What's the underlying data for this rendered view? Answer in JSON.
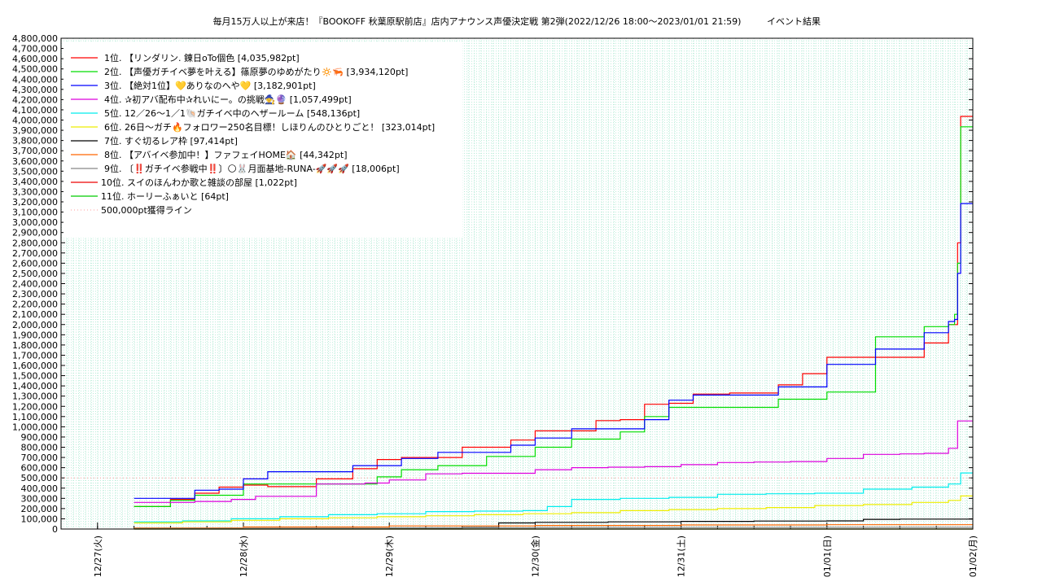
{
  "chart_data": {
    "type": "line",
    "title": "毎月15万人以上が来店！『BOOKOFF 秋葉原駅前店』店内アナウンス声優決定戦 第2弾(2022/12/26 18:00～2023/01/01 21:59)",
    "subtitle": "イベント結果",
    "xlabel": "",
    "ylabel": "",
    "ylim": [
      0,
      4800000
    ],
    "yticks": [
      "0",
      "100,000",
      "200,000",
      "300,000",
      "400,000",
      "500,000",
      "600,000",
      "700,000",
      "800,000",
      "900,000",
      "1,000,000",
      "1,100,000",
      "1,200,000",
      "1,300,000",
      "1,400,000",
      "1,500,000",
      "1,600,000",
      "1,700,000",
      "1,800,000",
      "1,900,000",
      "2,000,000",
      "2,100,000",
      "2,200,000",
      "2,300,000",
      "2,400,000",
      "2,500,000",
      "2,600,000",
      "2,700,000",
      "2,800,000",
      "2,900,000",
      "3,000,000",
      "3,100,000",
      "3,200,000",
      "3,300,000",
      "3,400,000",
      "3,500,000",
      "3,600,000",
      "3,700,000",
      "3,800,000",
      "3,900,000",
      "4,000,000",
      "4,100,000",
      "4,200,000",
      "4,300,000",
      "4,400,000",
      "4,500,000",
      "4,600,000",
      "4,700,000",
      "4,800,000"
    ],
    "xlim": [
      "2022-12-26T18:00",
      "2023-01-02T00:00"
    ],
    "xticks": [
      {
        "at": "2022-12-27T00:00",
        "label": "12/27(火)"
      },
      {
        "at": "2022-12-28T00:00",
        "label": "12/28(水)"
      },
      {
        "at": "2022-12-29T00:00",
        "label": "12/29(木)"
      },
      {
        "at": "2022-12-30T00:00",
        "label": "12/30(金)"
      },
      {
        "at": "2022-12-31T00:00",
        "label": "12/31(土)"
      },
      {
        "at": "2023-01-01T00:00",
        "label": "01/01(日)"
      },
      {
        "at": "2023-01-02T00:00",
        "label": "01/02(月)"
      }
    ],
    "grid": true,
    "legend_position": "top-left",
    "reference_line": {
      "label": "500,000pt獲得ライン",
      "value": 500000,
      "color": "#ff9999",
      "style": "dotted"
    },
    "series": [
      {
        "name": "1位. 【リンダリン. 錬日oTo個色 [4,035,982pt]",
        "color": "#ff0000",
        "x": [
          "2022-12-27T06:00",
          "2022-12-27T12:00",
          "2022-12-27T16:00",
          "2022-12-27T20:00",
          "2022-12-28T00:00",
          "2022-12-28T04:00",
          "2022-12-28T12:00",
          "2022-12-28T18:00",
          "2022-12-28T22:00",
          "2022-12-29T02:00",
          "2022-12-29T08:00",
          "2022-12-29T12:00",
          "2022-12-29T16:00",
          "2022-12-29T20:00",
          "2022-12-30T00:00",
          "2022-12-30T06:00",
          "2022-12-30T10:00",
          "2022-12-30T14:00",
          "2022-12-30T18:00",
          "2022-12-30T22:00",
          "2022-12-31T02:00",
          "2022-12-31T08:00",
          "2022-12-31T12:00",
          "2022-12-31T16:00",
          "2022-12-31T20:00",
          "2023-01-01T00:00",
          "2023-01-01T08:00",
          "2023-01-01T12:00",
          "2023-01-01T16:00",
          "2023-01-01T20:00",
          "2023-01-01T21:00",
          "2023-01-01T21:30",
          "2023-01-01T22:00",
          "2023-01-02T00:00"
        ],
        "y": [
          220000,
          290000,
          350000,
          410000,
          430000,
          415000,
          490000,
          590000,
          680000,
          700000,
          700000,
          800000,
          800000,
          870000,
          960000,
          960000,
          1060000,
          1070000,
          1220000,
          1230000,
          1320000,
          1330000,
          1330000,
          1410000,
          1520000,
          1680000,
          1680000,
          1680000,
          1820000,
          2000000,
          2000000,
          2800000,
          4035982,
          4035982
        ]
      },
      {
        "name": "2位. 【声優ガチイベ夢を叶える】篠原夢のゆめがたり🔅🦐 [3,934,120pt]",
        "color": "#00dd00",
        "x": [
          "2022-12-27T06:00",
          "2022-12-27T12:00",
          "2022-12-27T16:00",
          "2022-12-27T20:00",
          "2022-12-28T00:00",
          "2022-12-28T04:00",
          "2022-12-28T12:00",
          "2022-12-28T18:00",
          "2022-12-28T22:00",
          "2022-12-29T02:00",
          "2022-12-29T08:00",
          "2022-12-29T12:00",
          "2022-12-29T16:00",
          "2022-12-29T20:00",
          "2022-12-30T00:00",
          "2022-12-30T06:00",
          "2022-12-30T10:00",
          "2022-12-30T14:00",
          "2022-12-30T18:00",
          "2022-12-30T22:00",
          "2022-12-31T02:00",
          "2022-12-31T08:00",
          "2022-12-31T12:00",
          "2022-12-31T16:00",
          "2022-12-31T20:00",
          "2023-01-01T00:00",
          "2023-01-01T08:00",
          "2023-01-01T12:00",
          "2023-01-01T16:00",
          "2023-01-01T20:00",
          "2023-01-01T21:00",
          "2023-01-01T21:30",
          "2023-01-01T22:00",
          "2023-01-02T00:00"
        ],
        "y": [
          220000,
          280000,
          330000,
          330000,
          440000,
          440000,
          440000,
          440000,
          510000,
          580000,
          620000,
          620000,
          710000,
          710000,
          800000,
          880000,
          880000,
          950000,
          1100000,
          1190000,
          1190000,
          1190000,
          1190000,
          1270000,
          1270000,
          1340000,
          1880000,
          1880000,
          1980000,
          2000000,
          2100000,
          2600000,
          3934120,
          3934120
        ]
      },
      {
        "name": "3位. 【絶対1位】💛ありなのへや💛 [3,182,901pt]",
        "color": "#0000ff",
        "x": [
          "2022-12-27T06:00",
          "2022-12-27T12:00",
          "2022-12-27T16:00",
          "2022-12-27T20:00",
          "2022-12-28T00:00",
          "2022-12-28T04:00",
          "2022-12-28T12:00",
          "2022-12-28T18:00",
          "2022-12-28T22:00",
          "2022-12-29T02:00",
          "2022-12-29T08:00",
          "2022-12-29T12:00",
          "2022-12-29T16:00",
          "2022-12-29T20:00",
          "2022-12-30T00:00",
          "2022-12-30T06:00",
          "2022-12-30T10:00",
          "2022-12-30T14:00",
          "2022-12-30T18:00",
          "2022-12-30T22:00",
          "2022-12-31T02:00",
          "2022-12-31T08:00",
          "2022-12-31T12:00",
          "2022-12-31T16:00",
          "2022-12-31T20:00",
          "2023-01-01T00:00",
          "2023-01-01T08:00",
          "2023-01-01T12:00",
          "2023-01-01T16:00",
          "2023-01-01T20:00",
          "2023-01-01T21:00",
          "2023-01-01T21:30",
          "2023-01-01T22:00",
          "2023-01-02T00:00"
        ],
        "y": [
          300000,
          300000,
          380000,
          390000,
          490000,
          560000,
          560000,
          620000,
          620000,
          690000,
          750000,
          750000,
          750000,
          820000,
          890000,
          980000,
          980000,
          980000,
          1070000,
          1260000,
          1310000,
          1310000,
          1310000,
          1390000,
          1390000,
          1610000,
          1760000,
          1760000,
          1920000,
          2030000,
          2050000,
          2500000,
          3182901,
          3182901
        ]
      },
      {
        "name": "4位. ✰初アバ配布中✰れいにー。の挑戦🧙🔮 [1,057,499pt]",
        "color": "#dd00dd",
        "x": [
          "2022-12-27T06:00",
          "2022-12-27T16:00",
          "2022-12-27T22:00",
          "2022-12-28T02:00",
          "2022-12-28T12:00",
          "2022-12-28T20:00",
          "2022-12-29T00:00",
          "2022-12-29T06:00",
          "2022-12-29T12:00",
          "2022-12-29T18:00",
          "2022-12-30T00:00",
          "2022-12-30T06:00",
          "2022-12-30T12:00",
          "2022-12-30T18:00",
          "2022-12-31T00:00",
          "2022-12-31T06:00",
          "2022-12-31T12:00",
          "2022-12-31T18:00",
          "2023-01-01T00:00",
          "2023-01-01T06:00",
          "2023-01-01T12:00",
          "2023-01-01T16:00",
          "2023-01-01T20:00",
          "2023-01-01T21:30",
          "2023-01-02T00:00"
        ],
        "y": [
          260000,
          270000,
          290000,
          320000,
          440000,
          450000,
          480000,
          540000,
          545000,
          545000,
          580000,
          600000,
          605000,
          610000,
          630000,
          650000,
          655000,
          660000,
          690000,
          730000,
          735000,
          740000,
          790000,
          1057499,
          1057499
        ]
      },
      {
        "name": "5位. 12／26〜1／1🐚ガチイベ中のヘザールーム [548,136pt]",
        "color": "#00eeee",
        "x": [
          "2022-12-27T06:00",
          "2022-12-27T14:00",
          "2022-12-27T22:00",
          "2022-12-28T06:00",
          "2022-12-28T14:00",
          "2022-12-28T22:00",
          "2022-12-29T06:00",
          "2022-12-29T14:00",
          "2022-12-29T22:00",
          "2022-12-30T02:00",
          "2022-12-30T06:00",
          "2022-12-30T14:00",
          "2022-12-30T22:00",
          "2022-12-31T06:00",
          "2022-12-31T14:00",
          "2022-12-31T22:00",
          "2023-01-01T06:00",
          "2023-01-01T14:00",
          "2023-01-01T20:00",
          "2023-01-01T22:00",
          "2023-01-02T00:00"
        ],
        "y": [
          70000,
          80000,
          100000,
          120000,
          140000,
          150000,
          170000,
          175000,
          180000,
          220000,
          290000,
          300000,
          310000,
          340000,
          345000,
          350000,
          390000,
          410000,
          440000,
          548136,
          548136
        ]
      },
      {
        "name": "6位. 26日〜ガチ🔥フォロワー250名目標！しほりんのひとりごと！ [323,014pt]",
        "color": "#eeee00",
        "x": [
          "2022-12-27T06:00",
          "2022-12-27T14:00",
          "2022-12-27T22:00",
          "2022-12-28T06:00",
          "2022-12-28T14:00",
          "2022-12-28T22:00",
          "2022-12-29T06:00",
          "2022-12-29T14:00",
          "2022-12-29T22:00",
          "2022-12-30T06:00",
          "2022-12-30T14:00",
          "2022-12-30T22:00",
          "2022-12-31T06:00",
          "2022-12-31T14:00",
          "2022-12-31T22:00",
          "2023-01-01T06:00",
          "2023-01-01T14:00",
          "2023-01-01T20:00",
          "2023-01-01T22:00",
          "2023-01-02T00:00"
        ],
        "y": [
          60000,
          70000,
          85000,
          100000,
          110000,
          120000,
          130000,
          140000,
          150000,
          160000,
          180000,
          190000,
          200000,
          210000,
          230000,
          240000,
          260000,
          280000,
          323014,
          323014
        ]
      },
      {
        "name": "7位. すぐ切るレア枠 [97,414pt]",
        "color": "#000000",
        "x": [
          "2022-12-29T00:00",
          "2022-12-29T12:00",
          "2022-12-29T18:00",
          "2022-12-30T00:00",
          "2022-12-30T12:00",
          "2022-12-31T00:00",
          "2022-12-31T12:00",
          "2023-01-01T00:00",
          "2023-01-01T06:00",
          "2023-01-01T12:00",
          "2023-01-02T00:00"
        ],
        "y": [
          10000,
          15000,
          60000,
          65000,
          70000,
          75000,
          78000,
          80000,
          95000,
          97000,
          97414
        ]
      },
      {
        "name": "8位. 【アバイベ参加中！】ファフェイHOME🏠 [44,342pt]",
        "color": "#ff6600",
        "x": [
          "2022-12-27T06:00",
          "2022-12-28T00:00",
          "2022-12-29T00:00",
          "2022-12-30T00:00",
          "2022-12-31T00:00",
          "2023-01-01T00:00",
          "2023-01-02T00:00"
        ],
        "y": [
          10000,
          20000,
          30000,
          35000,
          40000,
          42000,
          44342
        ]
      },
      {
        "name": "9位. 〔‼️ガチイベ参戦中‼️〕🌕🐰月面基地-RUNA-🚀🚀🚀 [18,006pt]",
        "color": "#888888",
        "x": [
          "2022-12-27T06:00",
          "2022-12-28T00:00",
          "2022-12-29T00:00",
          "2022-12-30T00:00",
          "2022-12-31T00:00",
          "2023-01-01T00:00",
          "2023-01-02T00:00"
        ],
        "y": [
          5000,
          8000,
          12000,
          15000,
          16000,
          17000,
          18006
        ]
      },
      {
        "name": "10位. スイのほんわか歌と雑談の部屋 [1,022pt]",
        "color": "#ee0000",
        "x": [
          "2022-12-27T06:00",
          "2023-01-02T00:00"
        ],
        "y": [
          0,
          1022
        ]
      },
      {
        "name": "11位. ホーリーふぁいと [64pt]",
        "color": "#00cc00",
        "x": [
          "2022-12-27T06:00",
          "2023-01-02T00:00"
        ],
        "y": [
          0,
          64
        ]
      }
    ]
  }
}
